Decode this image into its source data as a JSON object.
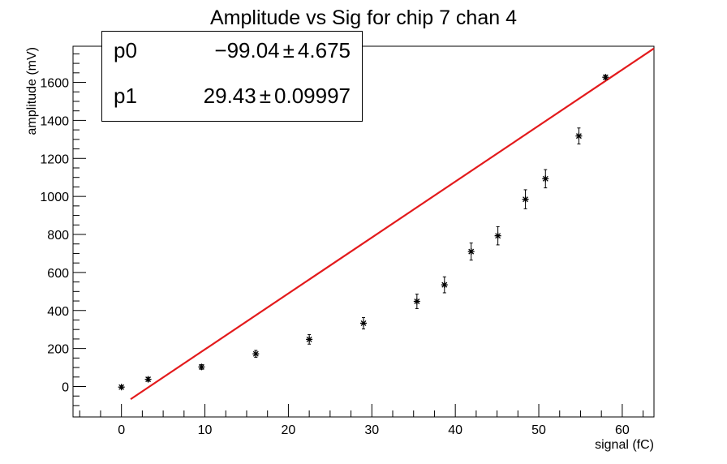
{
  "chart_data": {
    "type": "scatter",
    "title": "Amplitude vs Sig for chip 7 chan 4",
    "xlabel": "signal (fC)",
    "ylabel": "amplitude (mV)",
    "xlim": [
      -5.8,
      63.8
    ],
    "ylim": [
      -160,
      1790
    ],
    "xticks": [
      "0",
      "10",
      "20",
      "30",
      "40",
      "50",
      "60"
    ],
    "yticks": [
      "0",
      "200",
      "400",
      "600",
      "800",
      "1000",
      "1200",
      "1400",
      "1600"
    ],
    "series": [
      {
        "marker": "asterisk",
        "color": "#000000",
        "points": [
          {
            "x": 0.0,
            "y": -3,
            "err": 8
          },
          {
            "x": 3.2,
            "y": 38,
            "err": 10
          },
          {
            "x": 9.6,
            "y": 103,
            "err": 12
          },
          {
            "x": 16.1,
            "y": 172,
            "err": 18
          },
          {
            "x": 22.5,
            "y": 248,
            "err": 25
          },
          {
            "x": 29.0,
            "y": 333,
            "err": 30
          },
          {
            "x": 35.4,
            "y": 448,
            "err": 38
          },
          {
            "x": 38.7,
            "y": 535,
            "err": 42
          },
          {
            "x": 41.9,
            "y": 710,
            "err": 45
          },
          {
            "x": 45.1,
            "y": 793,
            "err": 48
          },
          {
            "x": 48.4,
            "y": 985,
            "err": 50
          },
          {
            "x": 50.8,
            "y": 1093,
            "err": 48
          },
          {
            "x": 54.8,
            "y": 1318,
            "err": 42
          },
          {
            "x": 58.0,
            "y": 1627,
            "err": 10
          }
        ]
      }
    ],
    "fit": {
      "type": "linear",
      "color": "#e31a1c",
      "p0": -99.04,
      "p1": 29.43,
      "x_range": [
        1.1,
        63.8
      ]
    },
    "stats_box": {
      "p0_label": "p0",
      "p0_value": "−99.04",
      "p0_error": "4.675",
      "p1_label": "p1",
      "p1_value": "29.43",
      "p1_error": "0.09997",
      "pm": "±"
    }
  }
}
